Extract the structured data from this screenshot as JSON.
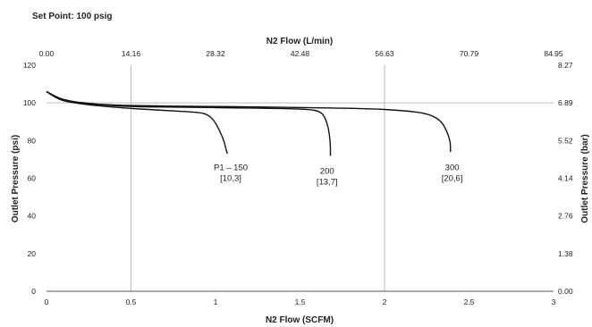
{
  "chart_data": {
    "type": "line",
    "title": "Set Point: 100 psig",
    "xlabel": "N2 Flow (SCFM)",
    "x2label": "N2 Flow (L/min)",
    "ylabel": "Outlet Pressure (psi)",
    "y2label": "Outlet Pressure (bar)",
    "xlim": [
      0,
      3
    ],
    "ylim": [
      0,
      120
    ],
    "x_ticks": [
      0,
      0.5,
      1,
      1.5,
      2,
      2.5,
      3
    ],
    "x_tick_labels": [
      "0",
      "0.5",
      "1",
      "1.5",
      "2",
      "2.5",
      "3"
    ],
    "y_ticks": [
      0,
      20,
      40,
      60,
      80,
      100,
      120
    ],
    "y_tick_labels": [
      "0",
      "20",
      "40",
      "60",
      "80",
      "100",
      "120"
    ],
    "x2_ticks": [
      0,
      0.5,
      1,
      1.5,
      2,
      2.5,
      3
    ],
    "x2_tick_labels": [
      "0.00",
      "14.16",
      "28.32",
      "42.48",
      "56.63",
      "70.79",
      "84.95"
    ],
    "y2_ticks": [
      0,
      20,
      40,
      60,
      80,
      100,
      120
    ],
    "y2_tick_labels": [
      "0.00",
      "1.38",
      "2.76",
      "4.14",
      "5.52",
      "6.89",
      "8.27"
    ],
    "vertical_gridlines_at": [
      0.5,
      2
    ],
    "horizontal_gridlines_at": [
      100
    ],
    "series": [
      {
        "points": [
          [
            0,
            106
          ],
          [
            0.05,
            103
          ],
          [
            0.1,
            101
          ],
          [
            0.2,
            99.5
          ],
          [
            0.3,
            98.5
          ],
          [
            0.5,
            97
          ],
          [
            0.7,
            96
          ],
          [
            0.9,
            95
          ],
          [
            0.95,
            94
          ],
          [
            0.99,
            91
          ],
          [
            1.02,
            86
          ],
          [
            1.05,
            80
          ],
          [
            1.06,
            76
          ],
          [
            1.07,
            73
          ]
        ],
        "label": [
          "P1 – 150",
          "[10,3]"
        ],
        "label_at": [
          1.09,
          70
        ]
      },
      {
        "points": [
          [
            0,
            106
          ],
          [
            0.1,
            101.2
          ],
          [
            0.3,
            99
          ],
          [
            0.5,
            98
          ],
          [
            0.8,
            97.7
          ],
          [
            1.1,
            97.4
          ],
          [
            1.4,
            97
          ],
          [
            1.55,
            96.6
          ],
          [
            1.62,
            95.5
          ],
          [
            1.65,
            92
          ],
          [
            1.67,
            86
          ],
          [
            1.68,
            78
          ],
          [
            1.68,
            72
          ]
        ],
        "label": [
          "200",
          "[13,7]"
        ],
        "label_at": [
          1.66,
          68
        ]
      },
      {
        "points": [
          [
            0,
            106
          ],
          [
            0.1,
            101.2
          ],
          [
            0.3,
            99.2
          ],
          [
            0.5,
            98.5
          ],
          [
            1,
            98.1
          ],
          [
            1.5,
            97.6
          ],
          [
            1.9,
            97
          ],
          [
            2.1,
            96
          ],
          [
            2.25,
            94.5
          ],
          [
            2.33,
            91
          ],
          [
            2.37,
            85
          ],
          [
            2.39,
            79
          ],
          [
            2.39,
            74
          ]
        ],
        "label": [
          "300",
          "[20,6]"
        ],
        "label_at": [
          2.4,
          70
        ]
      }
    ]
  }
}
